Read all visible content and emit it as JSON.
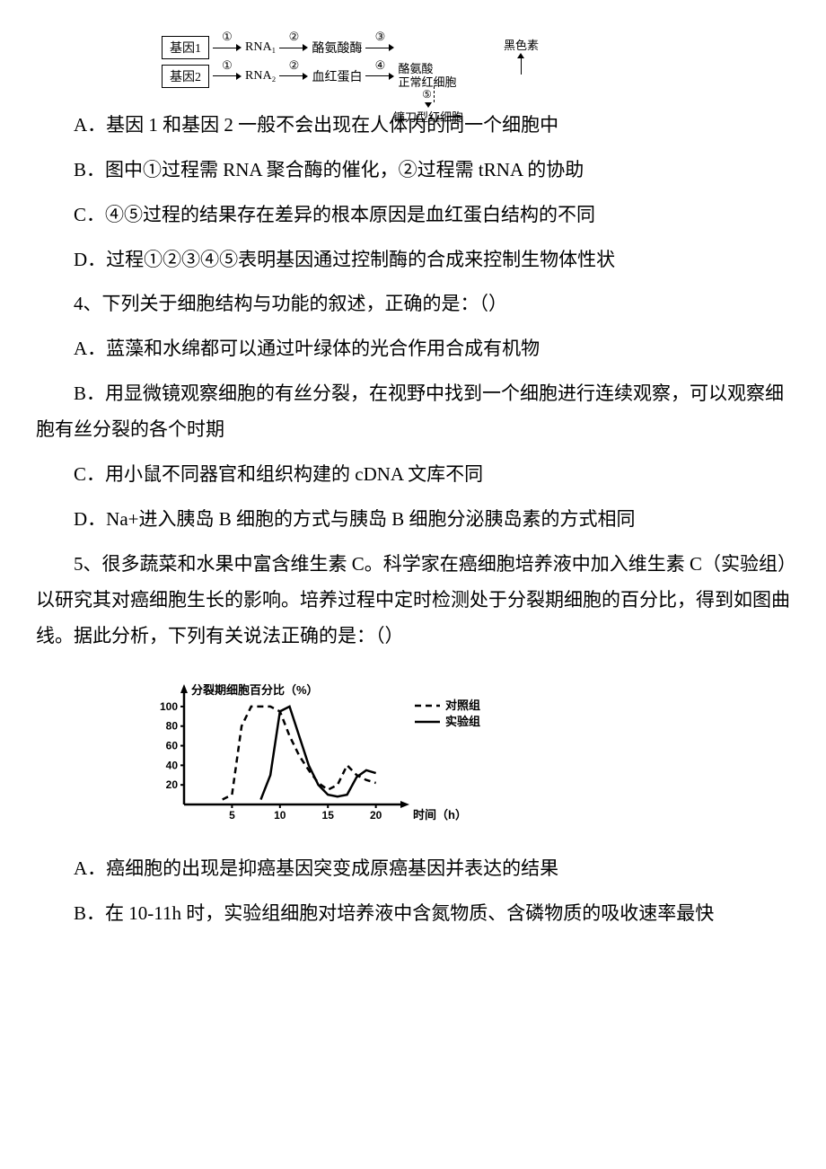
{
  "diagram1": {
    "gene1": "基因1",
    "gene2": "基因2",
    "rna1": "RNA₁",
    "rna2": "RNA₂",
    "tyrosinase": "酪氨酸酶",
    "hemoglobin": "血红蛋白",
    "melanin": "黑色素",
    "tyrosine_normal": "酪氨酸\n正常红细胞",
    "sickle": "镰刀型红细胞",
    "n1": "①",
    "n2": "②",
    "n3": "③",
    "n4": "④",
    "n5": "⑤"
  },
  "q3_options": {
    "a": "A．基因 1 和基因 2 一般不会出现在人体内的同一个细胞中",
    "b": "B．图中①过程需 RNA 聚合酶的催化，②过程需 tRNA 的协助",
    "c": "C．④⑤过程的结果存在差异的根本原因是血红蛋白结构的不同",
    "d": "D．过程①②③④⑤表明基因通过控制酶的合成来控制生物体性状"
  },
  "q4": {
    "stem": "4、下列关于细胞结构与功能的叙述，正确的是：（）",
    "a": "A．蓝藻和水绵都可以通过叶绿体的光合作用合成有机物",
    "b": "B．用显微镜观察细胞的有丝分裂，在视野中找到一个细胞进行连续观察，可以观察细胞有丝分裂的各个时期",
    "c": "C．用小鼠不同器官和组织构建的 cDNA 文库不同",
    "d": "D．Na+进入胰岛 B 细胞的方式与胰岛 B 细胞分泌胰岛素的方式相同"
  },
  "q5": {
    "stem": "5、很多蔬菜和水果中富含维生素 C。科学家在癌细胞培养液中加入维生素 C（实验组）以研究其对癌细胞生长的影响。培养过程中定时检测处于分裂期细胞的百分比，得到如图曲线。据此分析，下列有关说法正确的是：（）",
    "a": "A．癌细胞的出现是抑癌基因突变成原癌基因并表达的结果",
    "b": "B．在 10-11h 时，实验组细胞对培养液中含氮物质、含磷物质的吸收速率最快"
  },
  "chart": {
    "ylabel": "分裂期细胞百分比（%）",
    "xlabel": "时间（h）",
    "legend_control": "对照组",
    "legend_exp": "实验组",
    "yticks": [
      20,
      40,
      60,
      80,
      100
    ],
    "xticks": [
      5,
      10,
      15,
      20
    ],
    "xlim": [
      0,
      22
    ],
    "ylim": [
      0,
      110
    ],
    "control_series": [
      [
        4,
        5
      ],
      [
        5,
        10
      ],
      [
        6,
        80
      ],
      [
        7,
        100
      ],
      [
        8,
        100
      ],
      [
        9,
        100
      ],
      [
        10,
        95
      ],
      [
        11,
        70
      ],
      [
        12,
        50
      ],
      [
        13,
        35
      ],
      [
        14,
        22
      ],
      [
        15,
        15
      ],
      [
        16,
        20
      ],
      [
        17,
        40
      ],
      [
        18,
        30
      ],
      [
        19,
        25
      ],
      [
        20,
        22
      ]
    ],
    "exp_series": [
      [
        8,
        5
      ],
      [
        9,
        30
      ],
      [
        10,
        95
      ],
      [
        11,
        100
      ],
      [
        12,
        70
      ],
      [
        13,
        40
      ],
      [
        14,
        20
      ],
      [
        15,
        10
      ],
      [
        16,
        8
      ],
      [
        17,
        10
      ],
      [
        18,
        28
      ],
      [
        19,
        35
      ],
      [
        20,
        32
      ]
    ],
    "line_color": "#000000",
    "bg": "#ffffff"
  }
}
